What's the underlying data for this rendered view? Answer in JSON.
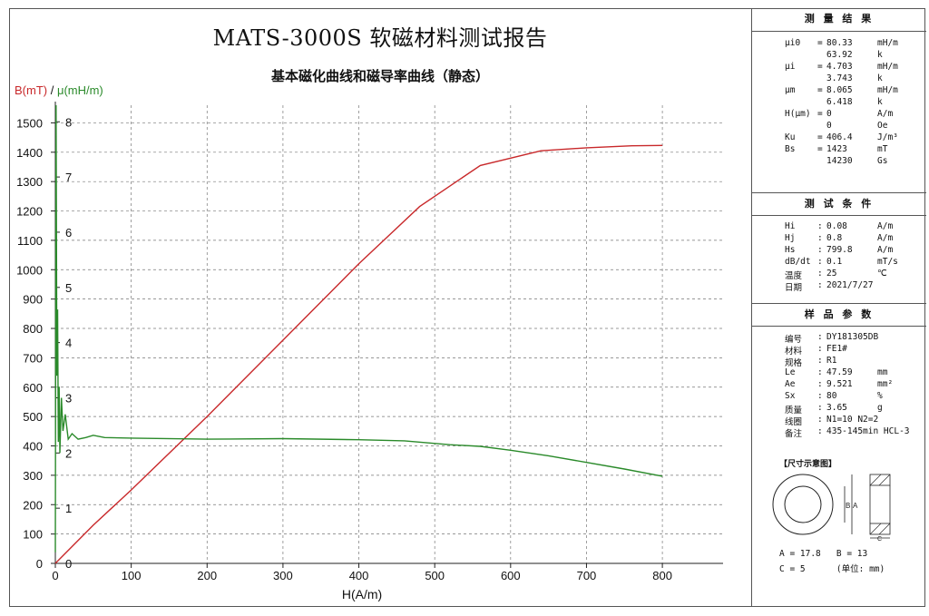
{
  "report": {
    "title": "MATS-3000S 软磁材料测试报告",
    "subtitle": "基本磁化曲线和磁导率曲线（静态）"
  },
  "chart_data": {
    "type": "line",
    "xlabel": "H(A/m)",
    "ylabel_left": "B(mT)",
    "ylabel_sep": " / ",
    "ylabel_right": "μ(mH/m)",
    "x_ticks": [
      0,
      100,
      200,
      300,
      400,
      500,
      600,
      700,
      800
    ],
    "y_ticks_left": [
      0,
      100,
      200,
      300,
      400,
      500,
      600,
      700,
      800,
      900,
      1000,
      1100,
      1200,
      1300,
      1400,
      1500
    ],
    "y_ticks_right": [
      0,
      1,
      2,
      3,
      4,
      5,
      6,
      7,
      8
    ],
    "xlim": [
      0,
      880
    ],
    "ylim_left": [
      0,
      1560
    ],
    "ylim_right": [
      0,
      8.3
    ],
    "grid": true,
    "series": [
      {
        "axis": "left",
        "color": "#c8282a",
        "x": [
          0,
          50,
          100,
          200,
          300,
          400,
          480,
          560,
          640,
          700,
          760,
          800
        ],
        "y": [
          0,
          130,
          250,
          500,
          760,
          1020,
          1215,
          1355,
          1405,
          1415,
          1422,
          1423
        ]
      },
      {
        "axis": "right",
        "color": "#2a8a2a",
        "x": [
          0,
          1,
          2,
          3,
          4,
          5,
          6,
          8,
          10,
          13,
          17,
          22,
          30,
          40,
          50,
          65,
          100,
          200,
          300,
          400,
          460,
          520,
          560,
          600,
          650,
          700,
          750,
          800
        ],
        "y": [
          0.2,
          8.3,
          3.4,
          4.6,
          2.2,
          3.2,
          2.0,
          3.0,
          2.4,
          2.7,
          2.25,
          2.35,
          2.25,
          2.28,
          2.32,
          2.28,
          2.27,
          2.25,
          2.26,
          2.24,
          2.22,
          2.15,
          2.12,
          2.05,
          1.95,
          1.83,
          1.71,
          1.58
        ]
      }
    ]
  },
  "panel": {
    "measure": {
      "header": "测 量 结 果",
      "rows": [
        [
          "μi0",
          "=",
          "80.33",
          "mH/m"
        ],
        [
          "",
          "",
          "63.92",
          "k"
        ],
        [
          "μi",
          "=",
          "4.703",
          "mH/m"
        ],
        [
          "",
          "",
          "3.743",
          "k"
        ],
        [
          "μm",
          "=",
          "8.065",
          "mH/m"
        ],
        [
          "",
          "",
          "6.418",
          "k"
        ],
        [
          "H(μm)",
          "=",
          "0",
          "A/m"
        ],
        [
          "",
          "",
          "0",
          "Oe"
        ],
        [
          "Ku",
          "=",
          "406.4",
          "J/m³"
        ],
        [
          "Bs",
          "=",
          "1423",
          "mT"
        ],
        [
          "",
          "",
          "14230",
          "Gs"
        ]
      ]
    },
    "conditions": {
      "header": "测 试 条 件",
      "rows": [
        [
          "Hi",
          ":",
          "0.08",
          "A/m"
        ],
        [
          "Hj",
          ":",
          "0.8",
          "A/m"
        ],
        [
          "Hs",
          ":",
          "799.8",
          "A/m"
        ],
        [
          "dB/dt",
          ":",
          "0.1",
          "mT/s"
        ],
        [
          "温度",
          ":",
          "25",
          "℃"
        ],
        [
          "日期",
          ":",
          "2021/7/27",
          ""
        ]
      ]
    },
    "sample": {
      "header": "样 品 参 数",
      "rows": [
        [
          "编号",
          ":",
          "DY181305DB",
          ""
        ],
        [
          "材料",
          ":",
          "FE1#",
          ""
        ],
        [
          "规格",
          ":",
          "R1",
          ""
        ],
        [
          "Le",
          ":",
          "47.59",
          "mm"
        ],
        [
          "Ae",
          ":",
          "9.521",
          "mm²"
        ],
        [
          "Sx",
          ":",
          "80",
          "%"
        ],
        [
          "质量",
          ":",
          "3.65",
          "g"
        ],
        [
          "线圈",
          ":",
          "N1=10 N2=2",
          ""
        ],
        [
          "备注",
          ":",
          "435-145min HCL-3",
          ""
        ]
      ]
    },
    "diagram": {
      "title": "【尺寸示意图】",
      "label_b": "B",
      "label_a": "A",
      "label_c": "C",
      "dim_line1": "A = 17.8   B = 13",
      "dim_line2": "C = 5      (单位: mm)"
    }
  }
}
